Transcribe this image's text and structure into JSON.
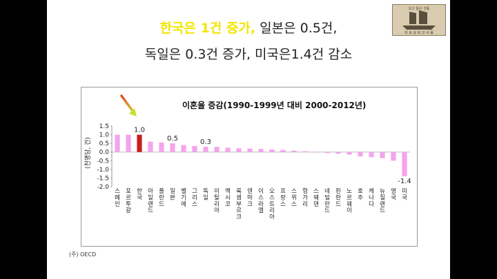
{
  "headline": {
    "line1_highlight": "한국은 1건 증가,",
    "line1_rest": " 일본은 0.5건,",
    "line2": "독일은 0.3건 증가, 미국은1.4건 감소"
  },
  "logo": {
    "top_text": "보고 들은 것들",
    "bottom_text": "이 요 상 보 고 서 를"
  },
  "source": "(주) OECD",
  "colors": {
    "bar": "#f4a4ee",
    "highlight": "#c81e1e",
    "arrow_top": "#e8452a",
    "arrow_bottom": "#c9e02a"
  },
  "chart_data": {
    "type": "bar",
    "title": "이혼율 증감(1990-1999년 대비 2000-2012년)",
    "ylabel": "(천명당, 건)",
    "xlabel": "",
    "ylim": [
      -2.0,
      1.5
    ],
    "yticks": [
      "1.5",
      "1.0",
      "0.5",
      "0.0",
      "-0.5",
      "-1.0",
      "-1.5",
      "-2.0"
    ],
    "grid": false,
    "highlight_index": 2,
    "categories": [
      "스페인",
      "포르투갈",
      "한국",
      "아일랜드",
      "폴란드",
      "일본",
      "벨기에",
      "그리스",
      "독일",
      "이탈리아",
      "멕시코",
      "룩셈부르크",
      "덴마크",
      "이스라엘",
      "오스트리아",
      "프랑스",
      "스위스",
      "헝가리",
      "스웨덴",
      "네덜란드",
      "핀란드",
      "노르웨이",
      "호주",
      "캐나다",
      "뉴질랜드",
      "영국",
      "미국"
    ],
    "values": [
      1.0,
      1.0,
      1.0,
      0.6,
      0.55,
      0.5,
      0.4,
      0.35,
      0.3,
      0.3,
      0.25,
      0.22,
      0.2,
      0.18,
      0.15,
      0.12,
      0.08,
      0.05,
      -0.03,
      -0.06,
      -0.1,
      -0.15,
      -0.25,
      -0.3,
      -0.35,
      -0.5,
      -1.4
    ],
    "data_labels": [
      {
        "index": 2,
        "text": "1.0"
      },
      {
        "index": 5,
        "text": "0.5"
      },
      {
        "index": 8,
        "text": "0.3"
      },
      {
        "index": 26,
        "text": "-1.4"
      }
    ]
  }
}
